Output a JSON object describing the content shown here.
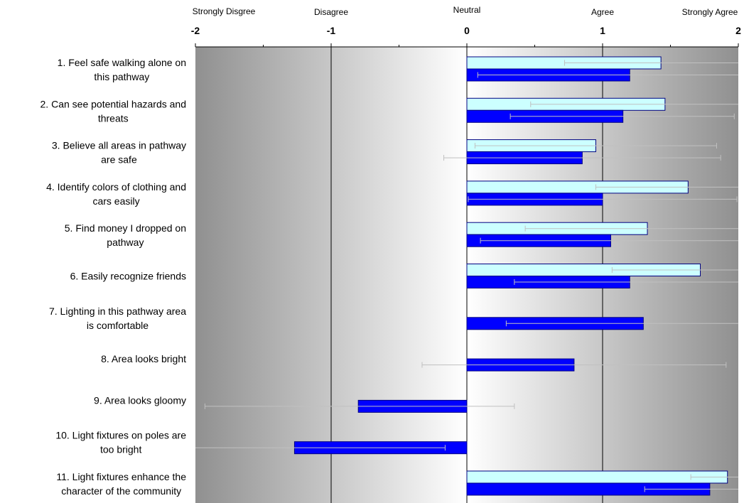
{
  "chart_data": {
    "type": "bar",
    "orientation": "horizontal",
    "title": "",
    "xlabel": "",
    "ylabel": "",
    "xlim": [
      -2,
      2
    ],
    "x_ticks": [
      {
        "value": -2,
        "label": "-2"
      },
      {
        "value": -1,
        "label": "-1"
      },
      {
        "value": 0,
        "label": "0"
      },
      {
        "value": 1,
        "label": "1"
      },
      {
        "value": 2,
        "label": "2"
      }
    ],
    "scale_labels": [
      {
        "value": -2,
        "label": "Strongly Disgree"
      },
      {
        "value": -1,
        "label": "Disagree"
      },
      {
        "value": 0,
        "label": "Neutral"
      },
      {
        "value": 1,
        "label": "Agree"
      },
      {
        "value": 2,
        "label": "Strongly Agree"
      }
    ],
    "grid": "vertical at major ticks",
    "legend": "none",
    "colors": {
      "series_light": "#ccffff",
      "series_dark": "#0000ff",
      "bar_outline": "#000080",
      "error_bar": "#c0c0c0",
      "band_dark": "#909090",
      "band_light": "#ffffff"
    },
    "categories": [
      {
        "line1": "1. Feel safe walking alone on",
        "line2": "this pathway"
      },
      {
        "line1": "2. Can see potential hazards and",
        "line2": "threats"
      },
      {
        "line1": "3. Believe all areas in pathway",
        "line2": "are safe"
      },
      {
        "line1": "4. Identify colors of clothing and",
        "line2": "cars easily"
      },
      {
        "line1": "5. Find money I dropped on",
        "line2": "pathway"
      },
      {
        "line1": "6. Easily recognize friends",
        "line2": ""
      },
      {
        "line1": "7. Lighting in this pathway area",
        "line2": "is comfortable"
      },
      {
        "line1": "8. Area looks bright",
        "line2": ""
      },
      {
        "line1": "9. Area looks gloomy",
        "line2": ""
      },
      {
        "line1": "10. Light fixtures on poles are",
        "line2": "too bright"
      },
      {
        "line1": "11. Light fixtures enhance the",
        "line2": "character of the community"
      }
    ],
    "series": [
      {
        "color": "#ccffff",
        "values": [
          1.43,
          1.46,
          0.95,
          1.63,
          1.33,
          1.72,
          null,
          null,
          null,
          null,
          1.92
        ],
        "error_low": [
          0.72,
          0.47,
          0.06,
          0.95,
          0.43,
          1.07,
          null,
          null,
          null,
          null,
          1.65
        ],
        "error_high": [
          2.0,
          2.0,
          1.84,
          2.0,
          2.0,
          2.0,
          null,
          null,
          null,
          null,
          2.0
        ]
      },
      {
        "color": "#0000ff",
        "values": [
          1.2,
          1.15,
          0.85,
          1.0,
          1.06,
          1.2,
          1.3,
          0.79,
          -0.8,
          -1.27,
          1.79
        ],
        "error_low": [
          0.08,
          0.32,
          -0.17,
          0.01,
          0.1,
          0.35,
          0.29,
          -0.33,
          -1.93,
          -2.0,
          1.31
        ],
        "error_high": [
          2.0,
          1.97,
          1.87,
          1.99,
          2.0,
          2.0,
          2.0,
          1.91,
          0.35,
          -0.16,
          2.0
        ]
      }
    ]
  }
}
